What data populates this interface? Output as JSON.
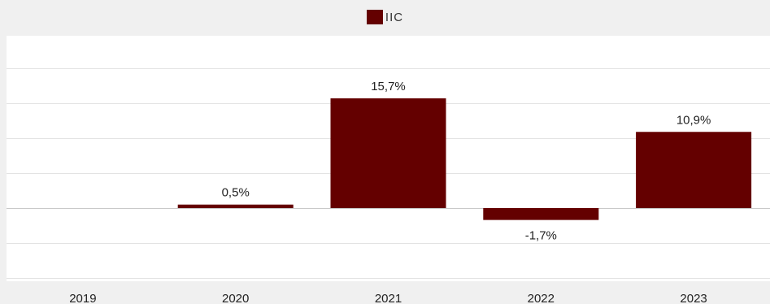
{
  "chart_data": {
    "type": "bar",
    "categories": [
      "2019",
      "2020",
      "2021",
      "2022",
      "2023"
    ],
    "series": [
      {
        "name": "IIC",
        "values": [
          null,
          0.5,
          15.7,
          -1.7,
          10.9
        ],
        "labels": [
          "",
          "0,5%",
          "15,7%",
          "-1,7%",
          "10,9%"
        ]
      }
    ],
    "ylim": [
      -10,
      25
    ],
    "grid": true,
    "legend": "top-center",
    "colors": {
      "bar": "#640000",
      "background": "#f0f0f0",
      "plot": "#ffffff"
    }
  }
}
